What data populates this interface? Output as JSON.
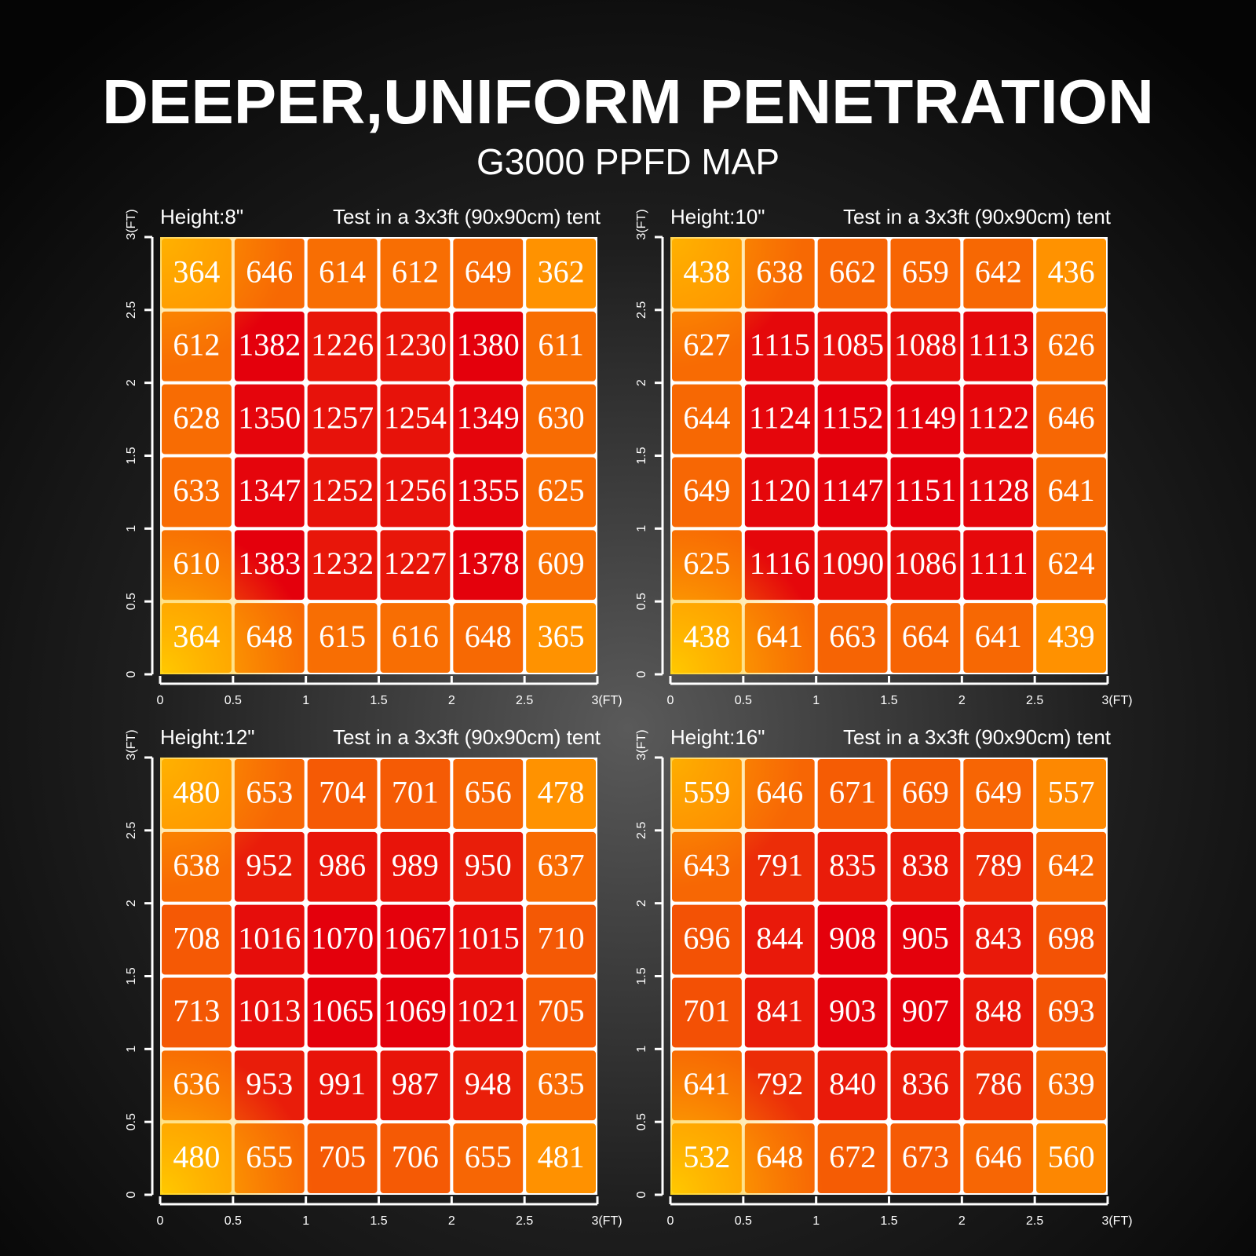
{
  "title": "DEEPER,UNIFORM PENETRATION",
  "subtitle": "G3000 PPFD MAP",
  "chart_data": [
    {
      "type": "heatmap",
      "title": "Height:8\"",
      "subtitle": "Test in a 3x3ft (90x90cm) tent",
      "xlim": [
        0,
        3
      ],
      "ylim": [
        0,
        3
      ],
      "xticks": [
        0,
        0.5,
        1,
        1.5,
        2,
        2.5,
        {
          "value": 3,
          "label": "3(FT)"
        }
      ],
      "yticks": [
        0,
        0.5,
        1,
        1.5,
        2,
        2.5,
        {
          "value": 3,
          "label": "3(FT)"
        }
      ],
      "colormap": [
        "#ff9200",
        "#e4000c"
      ],
      "values": [
        [
          364,
          646,
          614,
          612,
          649,
          362
        ],
        [
          612,
          1382,
          1226,
          1230,
          1380,
          611
        ],
        [
          628,
          1350,
          1257,
          1254,
          1349,
          630
        ],
        [
          633,
          1347,
          1252,
          1256,
          1355,
          625
        ],
        [
          610,
          1383,
          1232,
          1227,
          1378,
          609
        ],
        [
          364,
          648,
          615,
          616,
          648,
          365
        ]
      ]
    },
    {
      "type": "heatmap",
      "title": "Height:10\"",
      "subtitle": "Test in a 3x3ft (90x90cm) tent",
      "xlim": [
        0,
        3
      ],
      "ylim": [
        0,
        3
      ],
      "xticks": [
        0,
        0.5,
        1,
        1.5,
        2,
        2.5,
        {
          "value": 3,
          "label": "3(FT)"
        }
      ],
      "yticks": [
        0,
        0.5,
        1,
        1.5,
        2,
        2.5,
        {
          "value": 3,
          "label": "3(FT)"
        }
      ],
      "colormap": [
        "#ff9200",
        "#e4000c"
      ],
      "values": [
        [
          438,
          638,
          662,
          659,
          642,
          436
        ],
        [
          627,
          1115,
          1085,
          1088,
          1113,
          626
        ],
        [
          644,
          1124,
          1152,
          1149,
          1122,
          646
        ],
        [
          649,
          1120,
          1147,
          1151,
          1128,
          641
        ],
        [
          625,
          1116,
          1090,
          1086,
          1111,
          624
        ],
        [
          438,
          641,
          663,
          664,
          641,
          439
        ]
      ]
    },
    {
      "type": "heatmap",
      "title": "Height:12\"",
      "subtitle": "Test in a 3x3ft (90x90cm) tent",
      "xlim": [
        0,
        3
      ],
      "ylim": [
        0,
        3
      ],
      "xticks": [
        0,
        0.5,
        1,
        1.5,
        2,
        2.5,
        {
          "value": 3,
          "label": "3(FT)"
        }
      ],
      "yticks": [
        0,
        0.5,
        1,
        1.5,
        2,
        2.5,
        {
          "value": 3,
          "label": "3(FT)"
        }
      ],
      "colormap": [
        "#ff9200",
        "#e4000c"
      ],
      "values": [
        [
          480,
          653,
          704,
          701,
          656,
          478
        ],
        [
          638,
          952,
          986,
          989,
          950,
          637
        ],
        [
          708,
          1016,
          1070,
          1067,
          1015,
          710
        ],
        [
          713,
          1013,
          1065,
          1069,
          1021,
          705
        ],
        [
          636,
          953,
          991,
          987,
          948,
          635
        ],
        [
          480,
          655,
          705,
          706,
          655,
          481
        ]
      ]
    },
    {
      "type": "heatmap",
      "title": "Height:16\"",
      "subtitle": "Test in a 3x3ft (90x90cm) tent",
      "xlim": [
        0,
        3
      ],
      "ylim": [
        0,
        3
      ],
      "xticks": [
        0,
        0.5,
        1,
        1.5,
        2,
        2.5,
        {
          "value": 3,
          "label": "3(FT)"
        }
      ],
      "yticks": [
        0,
        0.5,
        1,
        1.5,
        2,
        2.5,
        {
          "value": 3,
          "label": "3(FT)"
        }
      ],
      "colormap": [
        "#ff9200",
        "#e4000c"
      ],
      "values": [
        [
          559,
          646,
          671,
          669,
          649,
          557
        ],
        [
          643,
          791,
          835,
          838,
          789,
          642
        ],
        [
          696,
          844,
          908,
          905,
          843,
          698
        ],
        [
          701,
          841,
          903,
          907,
          848,
          693
        ],
        [
          641,
          792,
          840,
          836,
          786,
          639
        ],
        [
          532,
          648,
          672,
          673,
          646,
          560
        ]
      ]
    }
  ]
}
